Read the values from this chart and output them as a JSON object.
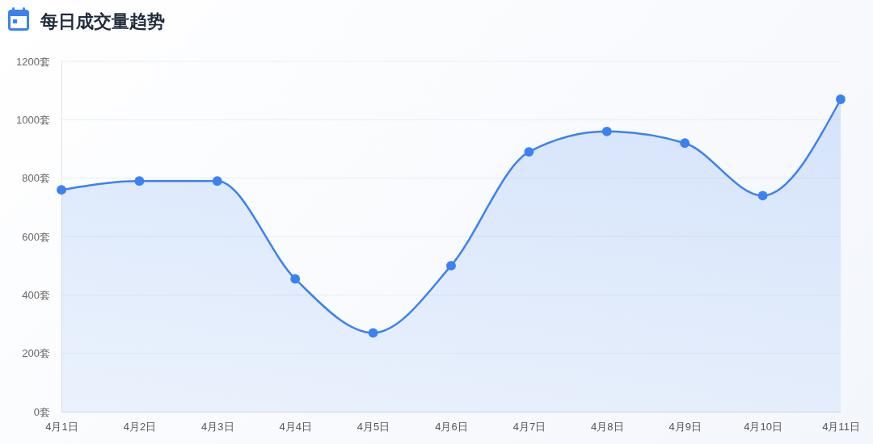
{
  "chart_data": {
    "type": "area",
    "title": "每日成交量趋势",
    "categories": [
      "4月1日",
      "4月2日",
      "4月3日",
      "4月4日",
      "4月5日",
      "4月6日",
      "4月7日",
      "4月8日",
      "4月9日",
      "4月10日",
      "4月11日"
    ],
    "series": [
      {
        "color": "#3b82f0",
        "values": [
          760,
          790,
          790,
          455,
          270,
          500,
          890,
          960,
          920,
          740,
          1070
        ]
      }
    ],
    "ylim": [
      0,
      1200
    ],
    "yticks": [
      {
        "value": 0,
        "label": "0套"
      },
      {
        "value": 200,
        "label": "200套"
      },
      {
        "value": 400,
        "label": "400套"
      },
      {
        "value": 600,
        "label": "600套"
      },
      {
        "value": 800,
        "label": "800套"
      },
      {
        "value": 1000,
        "label": "1000套"
      },
      {
        "value": 1200,
        "label": "1200套"
      }
    ],
    "grid": "y",
    "marker": "circle",
    "line_style": "solid"
  }
}
